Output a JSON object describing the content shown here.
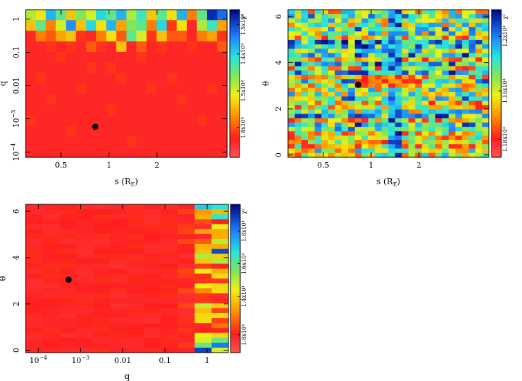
{
  "chart_data": [
    {
      "type": "heatmap",
      "id": "s_q",
      "xlabel": "s (R_E)",
      "xlabel_main": "s (R",
      "xlabel_sub": "E",
      "xlabel_close": ")",
      "ylabel": "q",
      "xscale": "log",
      "yscale": "log",
      "xlim": [
        0.3,
        5.5
      ],
      "ylim": [
        7e-05,
        1.9
      ],
      "xticks": [
        {
          "value": 0.5,
          "label": "0.5"
        },
        {
          "value": 1,
          "label": "1"
        },
        {
          "value": 2,
          "label": "2"
        }
      ],
      "yticks": [
        {
          "value": 1,
          "label": "1",
          "sup": ""
        },
        {
          "value": 0.1,
          "label": "0.1",
          "sup": ""
        },
        {
          "value": 0.01,
          "label": "0.01",
          "sup": ""
        },
        {
          "value": 0.001,
          "label": "10",
          "sup": "−3"
        },
        {
          "value": 0.0001,
          "label": "10",
          "sup": "−4"
        }
      ],
      "colorbar": {
        "title": "χ²",
        "ticks": [
          {
            "value": 0.9,
            "label": "1.5x10⁴"
          },
          {
            "value": 0.7,
            "label": "1.4x10⁴"
          },
          {
            "value": 0.45,
            "label": "1.5x10⁴"
          },
          {
            "value": 0.2,
            "label": "1.8x10⁴"
          }
        ]
      },
      "best_fit": {
        "x": 0.82,
        "y": 0.00058
      },
      "grid": {
        "cols": 20,
        "rows": 14,
        "rows_top_to_bottom": [
          "50 40 75 60 35 55 45 70 60 75 50 65 35 60 40 75 25 60 95 85",
          "35 60 25 45 80 35 70 40 75 30 55 60 25 70 15 40 10 50 65 30",
          "10 25 20 30 35 15 10 25 40 20 60 45 15 35 20 20 10 25 30 15",
          "10 10 15 10 15 10 20 15 10 35 10 20 10 15 10 10 15 10 10 20",
          "10 10 10 15 10 10 10 10 10 10 10 15 10 10 10 10 10 10 10 10",
          "10 10 10 10 10 10 15 10 15 10 10 10 10 10 10 10 10 10 10 10",
          "10 15 10 10 10 10 10 10 10 15 10 10 10 10 15 10 10 10 10 10",
          "10 10 10 10 10 15 10 10 10 10 10 10 15 10 10 10 10 10 15 10",
          "10 10 15 10 10 10 10 10 10 10 10 10 10 10 10 15 10 10 10 10",
          "10 10 10 10 10 10 10 10 15 10 10 10 10 10 10 10 10 10 10 10",
          "15 10 10 10 10 10 10 10 10 10 10 10 10 10 10 10 10 15 10 10",
          "10 10 10 10 15 10 10 10 10 10 10 10 10 10 10 10 10 10 10 10",
          "10 10 10 10 10 10 10 10 10 10 15 10 10 10 10 10 10 10 10 10",
          "10 10 10 10 10 10 10 10 10 10 10 10 10 10 10 10 10 10 10 10"
        ]
      }
    },
    {
      "type": "heatmap",
      "id": "s_theta",
      "xlabel": "s (R_E)",
      "xlabel_main": "s (R",
      "xlabel_sub": "E",
      "xlabel_close": ")",
      "ylabel": "θ",
      "xscale": "log",
      "yscale": "linear",
      "xlim": [
        0.3,
        5.5
      ],
      "ylim": [
        -0.1,
        6.3
      ],
      "xticks": [
        {
          "value": 0.5,
          "label": "0.5"
        },
        {
          "value": 1,
          "label": "1"
        },
        {
          "value": 2,
          "label": "2"
        }
      ],
      "yticks": [
        {
          "value": 0,
          "label": "0",
          "sup": ""
        },
        {
          "value": 2,
          "label": "2",
          "sup": ""
        },
        {
          "value": 4,
          "label": "4",
          "sup": ""
        },
        {
          "value": 6,
          "label": "6",
          "sup": ""
        }
      ],
      "colorbar": {
        "title": "χ²",
        "ticks": [
          {
            "value": 0.82,
            "label": "1.2x10⁴"
          },
          {
            "value": 0.45,
            "label": "1.15x10⁴"
          },
          {
            "value": 0.12,
            "label": "1.18x10⁴"
          }
        ]
      },
      "best_fit": {
        "x": 0.83,
        "y": 3.05
      },
      "grid": {
        "cols": 30,
        "rows": 34,
        "seed": 7
      }
    },
    {
      "type": "heatmap",
      "id": "q_theta",
      "xlabel": "q",
      "ylabel": "θ",
      "xscale": "log",
      "yscale": "linear",
      "xlim": [
        5e-05,
        3.2
      ],
      "ylim": [
        -0.1,
        6.3
      ],
      "xticks": [
        {
          "value": 0.0001,
          "label": "10",
          "sup": "−4"
        },
        {
          "value": 0.001,
          "label": "10",
          "sup": "−3"
        },
        {
          "value": 0.01,
          "label": "0.01",
          "sup": ""
        },
        {
          "value": 0.1,
          "label": "0.1",
          "sup": ""
        },
        {
          "value": 1,
          "label": "1",
          "sup": ""
        }
      ],
      "yticks": [
        {
          "value": 0,
          "label": "0",
          "sup": ""
        },
        {
          "value": 2,
          "label": "2",
          "sup": ""
        },
        {
          "value": 4,
          "label": "4",
          "sup": ""
        },
        {
          "value": 6,
          "label": "6",
          "sup": ""
        }
      ],
      "colorbar": {
        "title": "χ²",
        "ticks": [
          {
            "value": 0.82,
            "label": "1.8x10⁴"
          },
          {
            "value": 0.6,
            "label": "1.6x10⁴"
          },
          {
            "value": 0.38,
            "label": "1.4x10⁴"
          },
          {
            "value": 0.12,
            "label": "1.8x10⁴"
          }
        ]
      },
      "best_fit": {
        "x": 0.00052,
        "y": 3.05
      },
      "grid": {
        "cols": 12,
        "rows": 30,
        "seed": 13
      }
    }
  ]
}
